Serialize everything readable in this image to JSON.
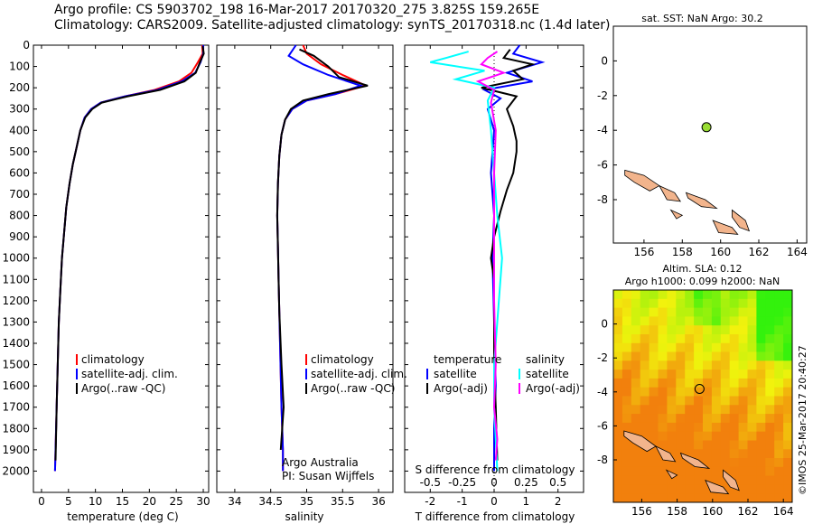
{
  "header": {
    "line1": "Argo profile: CS 5903702_198 16-Mar-2017 20170320_275 3.825S 159.265E",
    "line2": "Climatology: CARS2009. Satellite-adjusted climatology: synTS_20170318.nc (1.4d later)"
  },
  "colors": {
    "climatology": "#ff0000",
    "satellite": "#0000ff",
    "argo": "#000000",
    "sat_salinity": "#00ffff",
    "argo_salinity": "#ff00ff",
    "island": "#f2b48c"
  },
  "depth_axis": {
    "ticks": [
      0,
      100,
      200,
      300,
      400,
      500,
      600,
      700,
      800,
      900,
      1000,
      1100,
      1200,
      1300,
      1400,
      1500,
      1600,
      1700,
      1800,
      1900,
      2000
    ]
  },
  "chart_data": [
    {
      "type": "line",
      "id": "temperature",
      "xlabel": "temperature (deg C)",
      "xlim": [
        -1.5,
        31
      ],
      "ylim": [
        2100,
        0
      ],
      "xticks": [
        0,
        5,
        10,
        15,
        20,
        25,
        30
      ],
      "legend": [
        "climatology",
        "satellite-adj. clim.",
        "Argo(..raw -QC)"
      ],
      "series": [
        {
          "name": "climatology",
          "color": "#ff0000",
          "x": [
            29.8,
            29.9,
            29.0,
            27.8,
            25.5,
            21,
            15.5,
            11,
            9.2,
            8,
            7.2,
            6.5,
            5.8,
            5.2,
            4.6,
            4.2,
            3.8,
            3.5,
            3.2,
            3.0,
            2.8,
            2.6,
            2.5
          ],
          "y": [
            0,
            40,
            80,
            130,
            170,
            210,
            240,
            270,
            300,
            340,
            400,
            480,
            560,
            650,
            760,
            880,
            1000,
            1150,
            1300,
            1500,
            1700,
            1900,
            2000
          ]
        },
        {
          "name": "satellite-adj. clim.",
          "color": "#0000ff",
          "x": [
            30.0,
            30.0,
            29.5,
            28.5,
            26,
            21.5,
            15.5,
            11,
            9.2,
            8,
            7.2,
            6.5,
            5.8,
            5.2,
            4.6,
            4.2,
            3.8,
            3.5,
            3.2,
            3.0,
            2.8,
            2.6,
            2.5
          ],
          "y": [
            0,
            40,
            80,
            130,
            170,
            210,
            240,
            270,
            300,
            340,
            400,
            480,
            560,
            650,
            760,
            880,
            1000,
            1150,
            1300,
            1500,
            1700,
            1900,
            2000
          ]
        },
        {
          "name": "Argo(..raw -QC)",
          "color": "#000000",
          "x": [
            29.9,
            30.1,
            29.4,
            28.6,
            26.5,
            22,
            16,
            11.2,
            9.4,
            8.1,
            7.2,
            6.5,
            5.8,
            5.2,
            4.6,
            4.2,
            3.8,
            3.5,
            3.2,
            3.0,
            2.8,
            2.6
          ],
          "y": [
            5,
            40,
            80,
            130,
            170,
            210,
            240,
            270,
            300,
            340,
            400,
            480,
            560,
            650,
            760,
            880,
            1000,
            1150,
            1300,
            1500,
            1700,
            1950
          ]
        }
      ]
    },
    {
      "type": "line",
      "id": "salinity",
      "xlabel": "salinity",
      "xlim": [
        33.75,
        36.2
      ],
      "ylim": [
        2100,
        0
      ],
      "xticks": [
        34,
        34.5,
        35,
        35.5,
        36
      ],
      "legend": [
        "climatology",
        "satellite-adj. clim.",
        "Argo(..raw -QC)"
      ],
      "credit_line1": "Argo Australia",
      "credit_line2": "PI: Susan Wijffels",
      "series": [
        {
          "name": "climatology",
          "color": "#ff0000",
          "x": [
            34.95,
            35.0,
            35.2,
            35.5,
            35.82,
            35.4,
            35.0,
            34.8,
            34.7,
            34.65,
            34.62,
            34.6,
            34.59,
            34.6,
            34.61,
            34.62,
            34.63,
            34.64,
            34.65,
            34.66,
            34.67,
            34.67
          ],
          "y": [
            0,
            40,
            90,
            140,
            190,
            230,
            260,
            300,
            350,
            420,
            520,
            650,
            800,
            950,
            1100,
            1250,
            1400,
            1550,
            1700,
            1800,
            1900,
            2000
          ]
        },
        {
          "name": "satellite-adj. clim.",
          "color": "#0000ff",
          "x": [
            34.85,
            34.75,
            34.95,
            35.3,
            35.75,
            35.4,
            35.0,
            34.8,
            34.7,
            34.65,
            34.62,
            34.6,
            34.59,
            34.6,
            34.61,
            34.62,
            34.63,
            34.64,
            34.65,
            34.66,
            34.67,
            34.67
          ],
          "y": [
            0,
            50,
            90,
            140,
            190,
            230,
            260,
            300,
            350,
            420,
            520,
            650,
            800,
            950,
            1100,
            1250,
            1400,
            1550,
            1700,
            1800,
            1900,
            2000
          ]
        },
        {
          "name": "Argo(..raw -QC)",
          "color": "#000000",
          "x": [
            34.9,
            35.1,
            35.3,
            35.45,
            35.85,
            35.3,
            34.95,
            34.78,
            34.7,
            34.65,
            34.62,
            34.6,
            34.59,
            34.6,
            34.61,
            34.62,
            34.65,
            34.68,
            34.66,
            34.64
          ],
          "y": [
            20,
            50,
            100,
            150,
            190,
            230,
            260,
            300,
            350,
            420,
            520,
            650,
            800,
            950,
            1100,
            1250,
            1500,
            1700,
            1800,
            1900
          ]
        }
      ]
    },
    {
      "type": "line",
      "id": "differences",
      "xlabel": "T difference from climatology",
      "xlabel2": "S difference from climatology",
      "xlim": [
        -2.8,
        2.8
      ],
      "ylim": [
        2100,
        0
      ],
      "xticks": [
        -2,
        -1,
        0,
        1,
        2
      ],
      "xticks_s": [
        "-0.5",
        "-0.25",
        "0",
        "0.25",
        "0.5"
      ],
      "legend_headers": [
        "temperature",
        "salinity"
      ],
      "legend_t": [
        "satellite",
        "Argo(-adj)"
      ],
      "legend_s": [
        "satellite",
        "Argo(-adj)"
      ],
      "series": [
        {
          "name": "T satellite",
          "color": "#0000ff",
          "x": [
            0.8,
            0.6,
            1.5,
            0.4,
            1.2,
            -0.3,
            0.2,
            -0.2,
            0.0,
            -0.1,
            0.0,
            -0.05,
            0.0,
            0.05,
            0.0,
            0.0
          ],
          "y": [
            0,
            40,
            80,
            130,
            170,
            210,
            250,
            300,
            400,
            600,
            800,
            1000,
            1300,
            1600,
            1800,
            2000
          ]
        },
        {
          "name": "T Argo(-adj)",
          "color": "#000000",
          "x": [
            0.5,
            0.3,
            1.2,
            0.6,
            0.9,
            -0.4,
            0.7,
            0.4,
            0.6,
            0.7,
            0.7,
            0.65,
            0.6,
            0.4,
            0.2,
            0.0,
            -0.1,
            0.0,
            0.0,
            0.0,
            0.05,
            0.1
          ],
          "y": [
            20,
            60,
            90,
            120,
            160,
            200,
            240,
            300,
            380,
            450,
            500,
            550,
            600,
            680,
            780,
            900,
            1000,
            1100,
            1300,
            1500,
            1700,
            1950
          ]
        },
        {
          "name": "S satellite",
          "color": "#00ffff",
          "x": [
            -0.8,
            -1.5,
            -2.0,
            -0.3,
            -1.2,
            0.0,
            -0.2,
            -0.1,
            0.0,
            0.1,
            0.25,
            0.1,
            0.0,
            0.0,
            0.05,
            0.1
          ],
          "y": [
            30,
            60,
            80,
            120,
            160,
            200,
            260,
            400,
            600,
            800,
            1000,
            1300,
            1500,
            1700,
            1850,
            2000
          ]
        },
        {
          "name": "S Argo(-adj)",
          "color": "#ff00ff",
          "x": [
            0.1,
            -0.2,
            -0.4,
            0.3,
            -0.5,
            0.0,
            -0.1,
            0.05,
            0.0,
            0.0,
            0.0,
            0.05,
            0.0,
            0.1,
            0.05
          ],
          "y": [
            30,
            60,
            90,
            130,
            170,
            210,
            270,
            400,
            600,
            900,
            1200,
            1500,
            1700,
            1850,
            1950
          ]
        }
      ]
    },
    {
      "type": "scatter",
      "id": "sst_map",
      "title": "sat. SST: NaN Argo: 30.2",
      "xlim": [
        154.4,
        164.5
      ],
      "ylim": [
        -10.5,
        2.0
      ],
      "xticks": [
        156,
        158,
        160,
        162,
        164
      ],
      "yticks": [
        0,
        -2,
        -4,
        -6,
        -8
      ],
      "argo_position": {
        "lon": 159.265,
        "lat": -3.825,
        "fill": "#99dd33"
      }
    },
    {
      "type": "heatmap",
      "id": "sla_map",
      "title_line1": "Altim. SLA: 0.12",
      "title_line2": "Argo h1000: 0.099 h2000: NaN",
      "xlim": [
        154.4,
        164.5
      ],
      "ylim": [
        -10.5,
        2.0
      ],
      "xticks": [
        156,
        158,
        160,
        162,
        164
      ],
      "yticks": [
        0,
        -2,
        -4,
        -6,
        -8
      ],
      "argo_position": {
        "lon": 159.265,
        "lat": -3.825
      }
    }
  ],
  "footer": {
    "credit": "©IMOS 25-Mar-2017 20:40:27"
  }
}
